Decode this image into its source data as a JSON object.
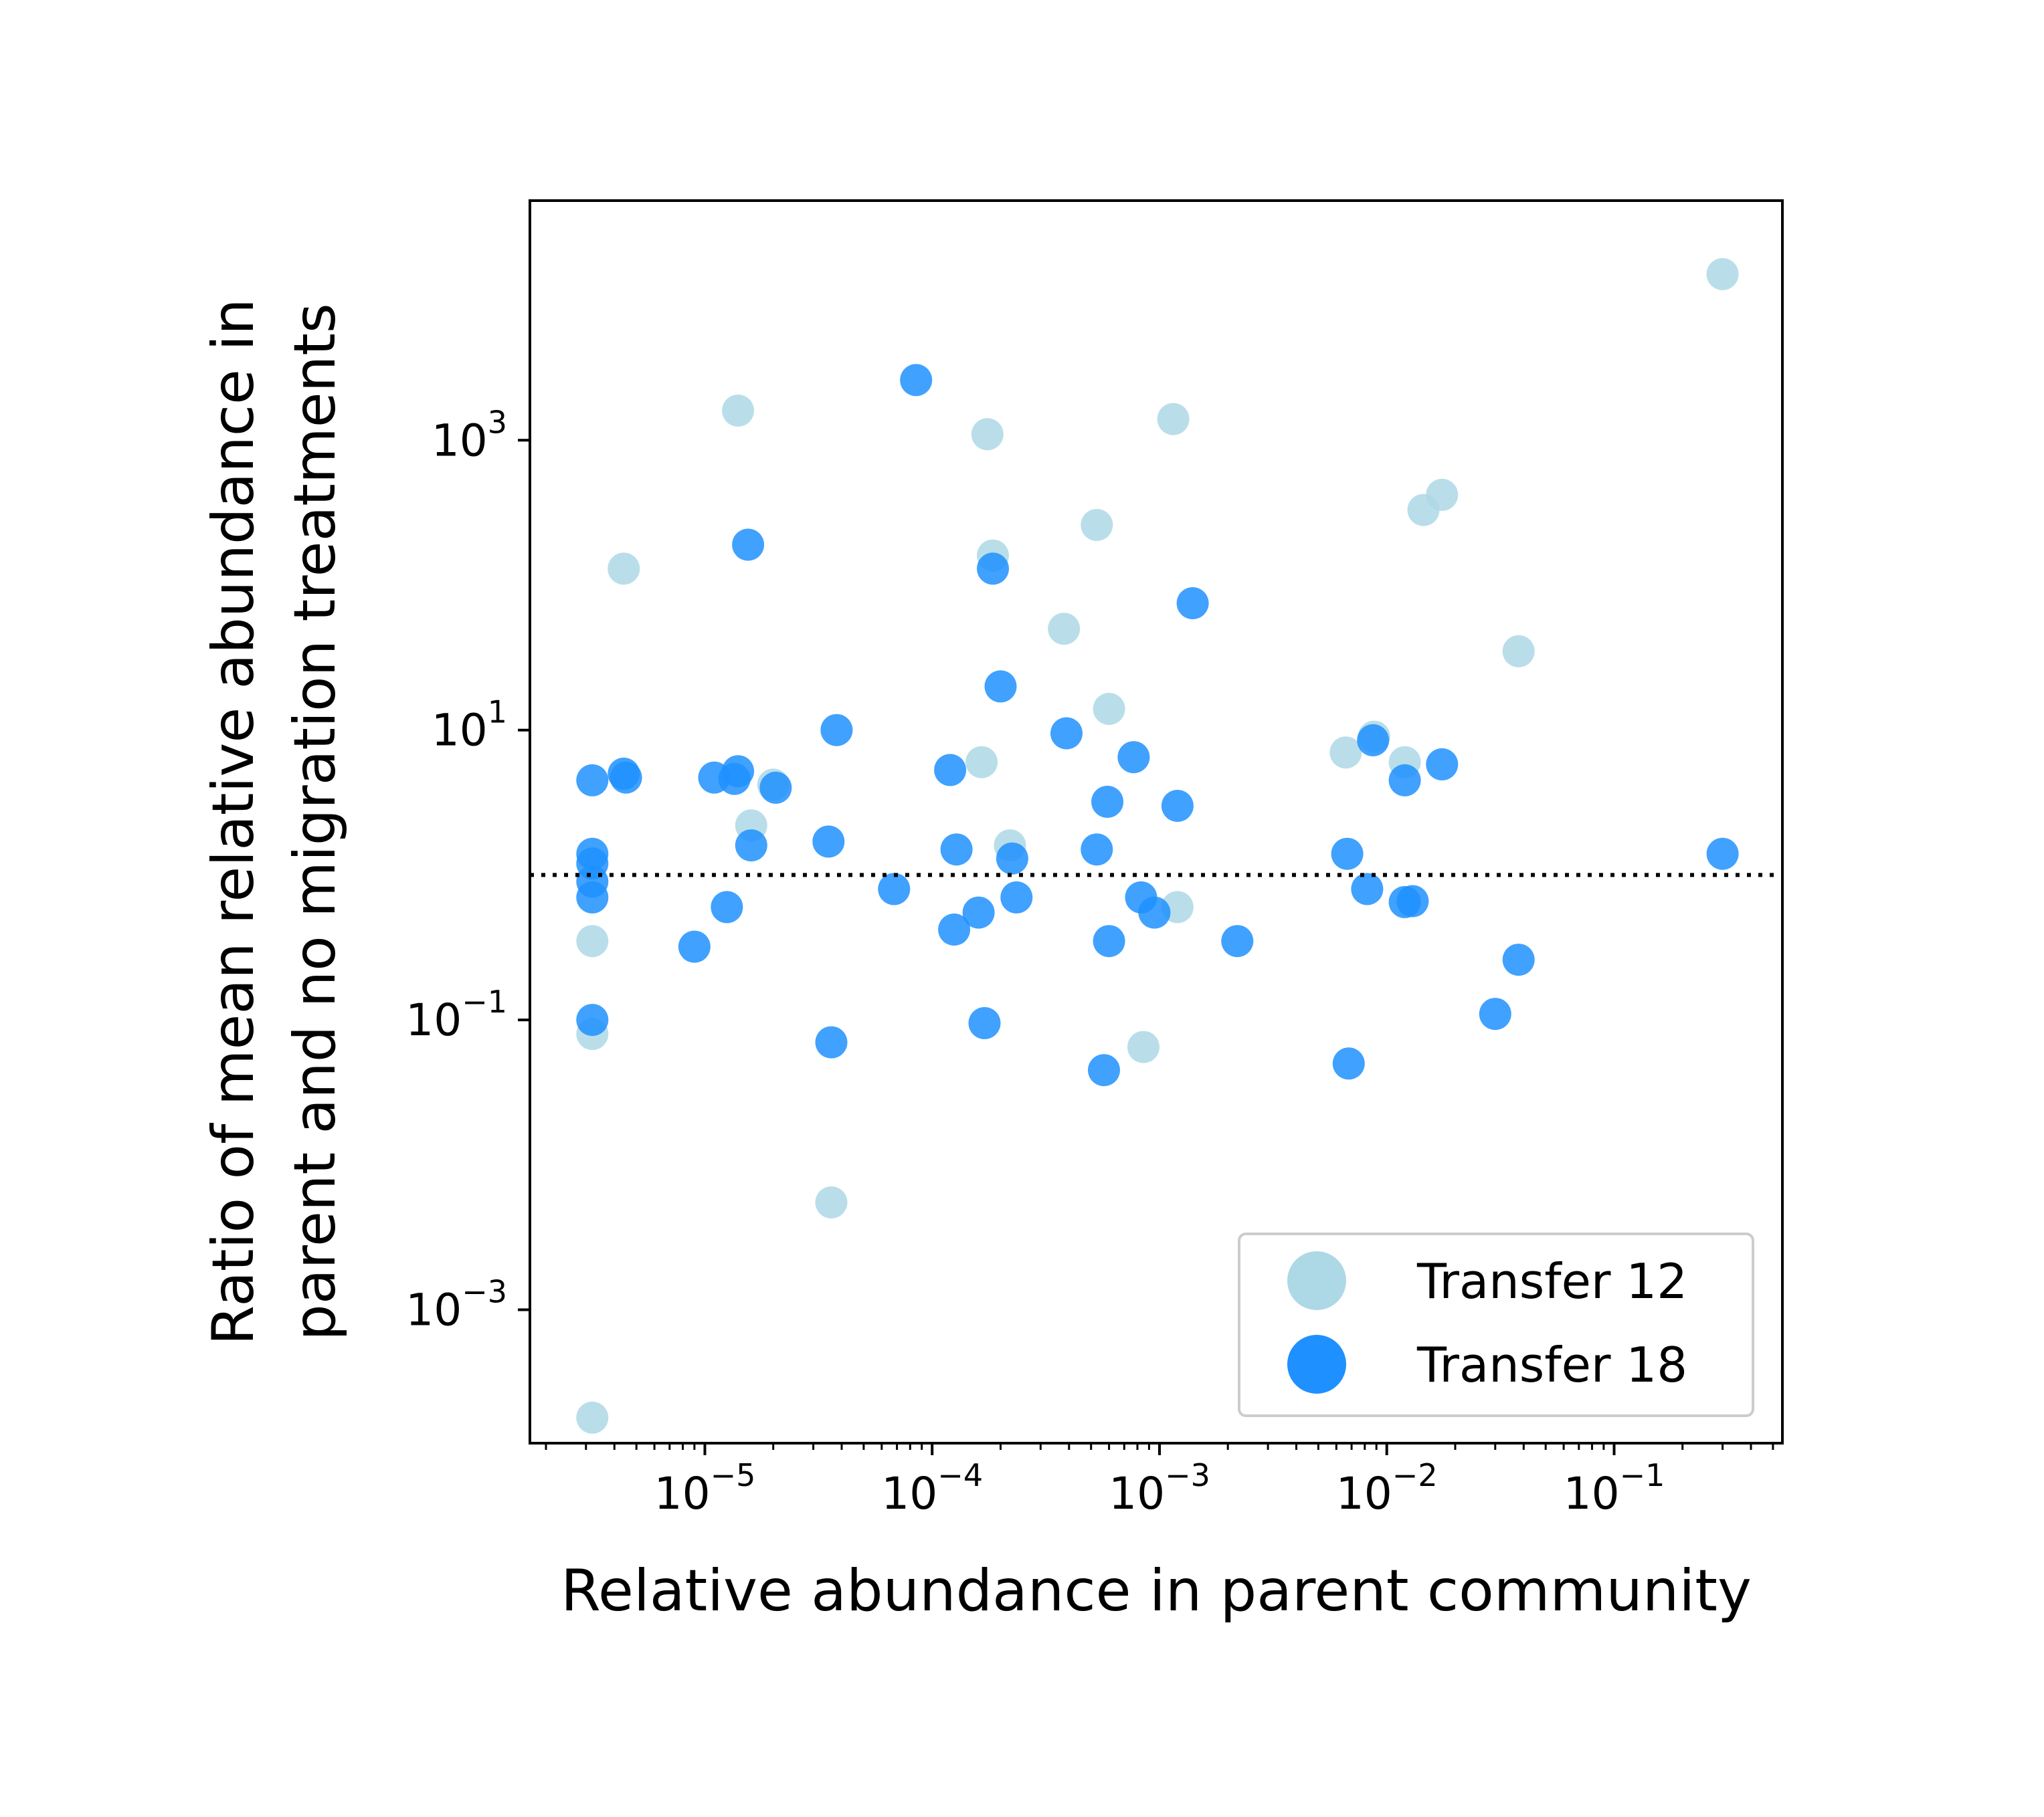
{
  "chart_data": {
    "type": "scatter",
    "xlabel": "Relative abundance in parent community",
    "ylabel": [
      "Ratio of mean relative abundance in",
      "parent and no migration treatments"
    ],
    "xscale": "log",
    "yscale": "log",
    "xlim": [
      1.7e-06,
      0.55
    ],
    "ylim": [
      0.00012,
      45000
    ],
    "x_ticks": [
      {
        "value": 1e-05,
        "base": "10",
        "exp": "−5"
      },
      {
        "value": 0.0001,
        "base": "10",
        "exp": "−4"
      },
      {
        "value": 0.001,
        "base": "10",
        "exp": "−3"
      },
      {
        "value": 0.01,
        "base": "10",
        "exp": "−2"
      },
      {
        "value": 0.1,
        "base": "10",
        "exp": "−1"
      }
    ],
    "y_ticks": [
      {
        "value": 0.001,
        "base": "10",
        "exp": "−3"
      },
      {
        "value": 0.1,
        "base": "10",
        "exp": "−1"
      },
      {
        "value": 10,
        "base": "10",
        "exp": "1"
      },
      {
        "value": 1000,
        "base": "10",
        "exp": "3"
      }
    ],
    "reference_line": {
      "y": 1,
      "style": "dotted",
      "color": "#000000"
    },
    "grid": false,
    "legend_position": "lower right",
    "series": [
      {
        "name": "Transfer 12",
        "color": "#add8e6",
        "points": [
          [
            3.2e-06,
            0.00018
          ],
          [
            3.2e-06,
            0.08
          ],
          [
            3.2e-06,
            0.35
          ],
          [
            4.4e-06,
            130
          ],
          [
            1.4e-05,
            1600
          ],
          [
            1.6e-05,
            2.2
          ],
          [
            2e-05,
            4.2
          ],
          [
            3.6e-05,
            0.0055
          ],
          [
            0.000165,
            6.0
          ],
          [
            0.000175,
            1100
          ],
          [
            0.000185,
            160
          ],
          [
            0.00022,
            1.6
          ],
          [
            0.00038,
            50
          ],
          [
            0.00053,
            260
          ],
          [
            0.0006,
            14
          ],
          [
            0.00085,
            0.065
          ],
          [
            0.00115,
            1400
          ],
          [
            0.0012,
            0.6
          ],
          [
            0.0066,
            7.0
          ],
          [
            0.0088,
            9.0
          ],
          [
            0.012,
            6.0
          ],
          [
            0.0145,
            330
          ],
          [
            0.0175,
            420
          ],
          [
            0.038,
            35
          ],
          [
            0.3,
            14000
          ]
        ]
      },
      {
        "name": "Transfer 18",
        "color": "#1e90ff",
        "points": [
          [
            3.2e-06,
            4.5
          ],
          [
            3.2e-06,
            1.4
          ],
          [
            3.2e-06,
            1.2
          ],
          [
            3.2e-06,
            0.9
          ],
          [
            3.2e-06,
            0.7
          ],
          [
            3.2e-06,
            0.1
          ],
          [
            4.4e-06,
            5.0
          ],
          [
            4.5e-06,
            4.7
          ],
          [
            9e-06,
            0.32
          ],
          [
            1.1e-05,
            4.7
          ],
          [
            1.25e-05,
            0.6
          ],
          [
            1.35e-05,
            4.6
          ],
          [
            1.4e-05,
            5.2
          ],
          [
            1.55e-05,
            190
          ],
          [
            1.6e-05,
            1.6
          ],
          [
            2.05e-05,
            4.0
          ],
          [
            3.5e-05,
            1.7
          ],
          [
            3.6e-05,
            0.07
          ],
          [
            3.8e-05,
            10
          ],
          [
            6.8e-05,
            0.8
          ],
          [
            8.5e-05,
            2600
          ],
          [
            0.00012,
            5.3
          ],
          [
            0.000125,
            0.42
          ],
          [
            0.000128,
            1.5
          ],
          [
            0.00016,
            0.55
          ],
          [
            0.00017,
            0.095
          ],
          [
            0.000185,
            130
          ],
          [
            0.0002,
            20
          ],
          [
            0.000225,
            1.3
          ],
          [
            0.000235,
            0.7
          ],
          [
            0.00039,
            9.5
          ],
          [
            0.00053,
            1.5
          ],
          [
            0.00057,
            0.045
          ],
          [
            0.00059,
            3.2
          ],
          [
            0.0006,
            0.35
          ],
          [
            0.00077,
            6.5
          ],
          [
            0.00083,
            0.7
          ],
          [
            0.00095,
            0.55
          ],
          [
            0.0012,
            3.0
          ],
          [
            0.0014,
            75
          ],
          [
            0.0022,
            0.35
          ],
          [
            0.0067,
            1.4
          ],
          [
            0.0068,
            0.05
          ],
          [
            0.0082,
            0.8
          ],
          [
            0.0087,
            8.5
          ],
          [
            0.012,
            4.5
          ],
          [
            0.012,
            0.65
          ],
          [
            0.013,
            0.66
          ],
          [
            0.0175,
            5.8
          ],
          [
            0.03,
            0.11
          ],
          [
            0.038,
            0.26
          ],
          [
            0.3,
            1.4
          ]
        ]
      }
    ]
  }
}
